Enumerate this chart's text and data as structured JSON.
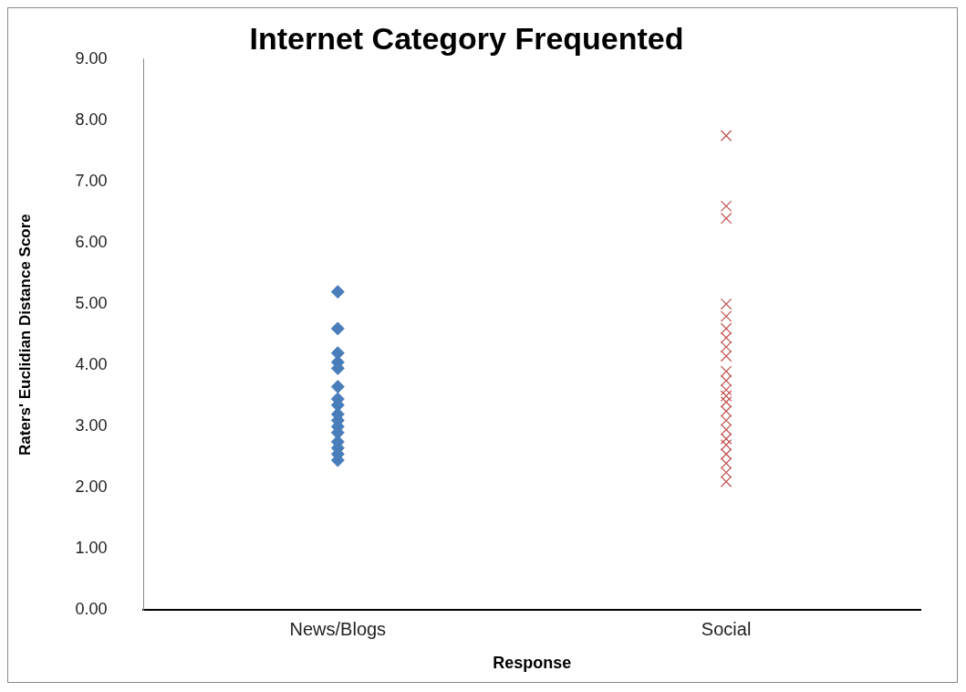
{
  "chart_data": {
    "type": "scatter",
    "title": "Internet Category Frequented",
    "xlabel": "Response",
    "ylabel": "Raters' Euclidian Distance Score",
    "categories": [
      "News/Blogs",
      "Social"
    ],
    "series": [
      {
        "color": "#4a7ebb",
        "marker": "diamond",
        "x": [
          "News/Blogs",
          "News/Blogs",
          "News/Blogs",
          "News/Blogs",
          "News/Blogs",
          "News/Blogs",
          "News/Blogs",
          "News/Blogs",
          "News/Blogs",
          "News/Blogs",
          "News/Blogs",
          "News/Blogs",
          "News/Blogs",
          "News/Blogs",
          "News/Blogs",
          "News/Blogs"
        ],
        "values": [
          5.2,
          4.6,
          4.2,
          4.05,
          3.95,
          3.65,
          3.45,
          3.35,
          3.2,
          3.1,
          3.0,
          2.9,
          2.75,
          2.65,
          2.55,
          2.45
        ]
      },
      {
        "color": "#c0504d",
        "marker": "cross",
        "x": [
          "Social",
          "Social",
          "Social",
          "Social",
          "Social",
          "Social",
          "Social",
          "Social",
          "Social",
          "Social",
          "Social",
          "Social",
          "Social",
          "Social",
          "Social",
          "Social",
          "Social",
          "Social",
          "Social",
          "Social",
          "Social",
          "Social",
          "Social"
        ],
        "values": [
          7.75,
          6.6,
          6.4,
          5.0,
          4.8,
          4.6,
          4.45,
          4.3,
          4.15,
          3.9,
          3.75,
          3.6,
          3.4,
          3.25,
          3.1,
          2.95,
          2.8,
          2.7,
          2.55,
          2.4,
          2.25,
          2.1,
          3.5
        ]
      }
    ],
    "ylim": [
      0,
      9
    ],
    "yticks": [
      {
        "value": 0,
        "label": "0.00"
      },
      {
        "value": 1,
        "label": "1.00"
      },
      {
        "value": 2,
        "label": "2.00"
      },
      {
        "value": 3,
        "label": "3.00"
      },
      {
        "value": 4,
        "label": "4.00"
      },
      {
        "value": 5,
        "label": "5.00"
      },
      {
        "value": 6,
        "label": "6.00"
      },
      {
        "value": 7,
        "label": "7.00"
      },
      {
        "value": 8,
        "label": "8.00"
      },
      {
        "value": 9,
        "label": "9.00"
      }
    ],
    "grid": false,
    "legend": false
  }
}
